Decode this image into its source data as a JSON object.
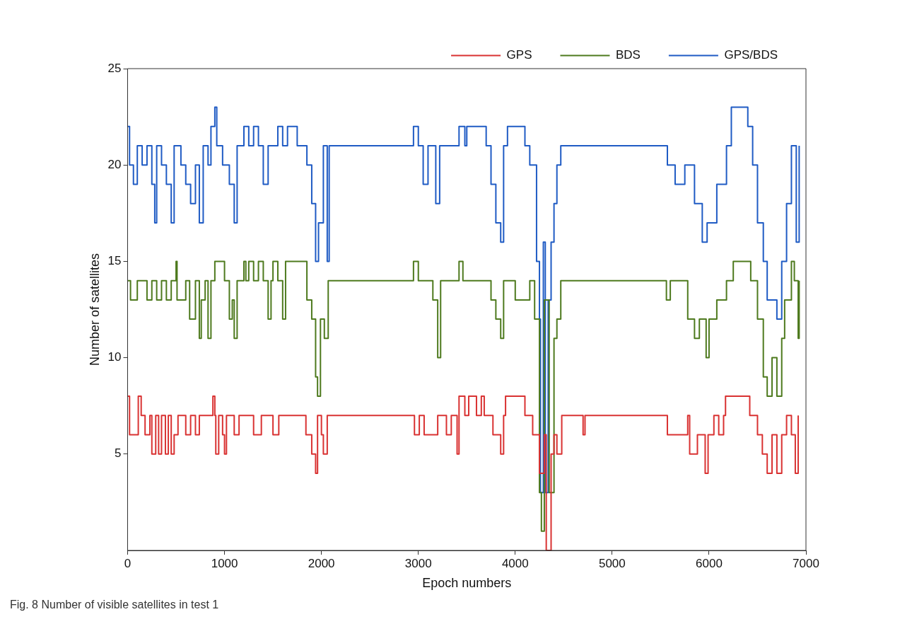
{
  "chart_data": {
    "type": "step",
    "xlabel": "Epoch numbers",
    "ylabel": "Number of satellites",
    "annotations": [
      "Fig. 8  Number of visible satellites in test 1"
    ],
    "xlim": [
      0,
      7000
    ],
    "xticks": [
      0,
      1000,
      2000,
      3000,
      4000,
      5000,
      6000,
      7000
    ],
    "ylim": [
      0,
      25
    ],
    "yticks": [
      5,
      10,
      15,
      20,
      25
    ],
    "grid": false,
    "legend": "top right",
    "series": [
      {
        "name": "GPS",
        "color": "#d93232",
        "x": [
          0,
          20,
          110,
          140,
          180,
          230,
          250,
          290,
          320,
          350,
          390,
          420,
          450,
          480,
          520,
          600,
          650,
          700,
          740,
          880,
          900,
          910,
          940,
          980,
          1000,
          1020,
          1100,
          1150,
          1300,
          1380,
          1500,
          1560,
          1840,
          1900,
          1940,
          1960,
          2000,
          2020,
          2060,
          2960,
          3010,
          3060,
          3200,
          3290,
          3340,
          3400,
          3420,
          3480,
          3520,
          3600,
          3650,
          3680,
          3770,
          3850,
          3880,
          3900,
          4100,
          4180,
          4250,
          4300,
          4320,
          4370,
          4400,
          4430,
          4480,
          4700,
          4720,
          5570,
          5780,
          5800,
          5880,
          5960,
          5990,
          6050,
          6100,
          6150,
          6170,
          6420,
          6500,
          6550,
          6600,
          6650,
          6700,
          6750,
          6800,
          6850,
          6890,
          6920
        ],
        "values": [
          8,
          6,
          8,
          7,
          6,
          7,
          5,
          7,
          5,
          7,
          5,
          7,
          5,
          6,
          7,
          6,
          7,
          6,
          7,
          8,
          7,
          5,
          7,
          6,
          5,
          7,
          6,
          7,
          6,
          7,
          6,
          7,
          6,
          5,
          4,
          7,
          6,
          5,
          7,
          6,
          7,
          6,
          7,
          6,
          7,
          5,
          8,
          7,
          8,
          7,
          8,
          7,
          6,
          5,
          7,
          8,
          7,
          6,
          4,
          6,
          0,
          5,
          6,
          5,
          7,
          6,
          7,
          6,
          7,
          5,
          6,
          4,
          6,
          7,
          6,
          7,
          8,
          7,
          6,
          5,
          4,
          6,
          4,
          6,
          7,
          6,
          4,
          7
        ]
      },
      {
        "name": "BDS",
        "color": "#4e7a1e",
        "x": [
          0,
          30,
          100,
          200,
          250,
          300,
          350,
          400,
          450,
          500,
          510,
          600,
          640,
          700,
          740,
          760,
          800,
          830,
          860,
          900,
          1000,
          1050,
          1080,
          1100,
          1130,
          1200,
          1220,
          1250,
          1300,
          1350,
          1400,
          1450,
          1480,
          1500,
          1550,
          1600,
          1630,
          1850,
          1900,
          1940,
          1960,
          1990,
          2030,
          2070,
          2950,
          3000,
          3150,
          3200,
          3230,
          3420,
          3460,
          3750,
          3800,
          3850,
          3880,
          4000,
          4150,
          4200,
          4250,
          4270,
          4300,
          4350,
          4400,
          4430,
          4470,
          5560,
          5600,
          5780,
          5850,
          5900,
          5970,
          6000,
          6080,
          6180,
          6250,
          6430,
          6500,
          6560,
          6600,
          6650,
          6700,
          6750,
          6780,
          6850,
          6880,
          6920,
          6930
        ],
        "values": [
          14,
          13,
          14,
          13,
          14,
          13,
          14,
          13,
          14,
          15,
          13,
          14,
          12,
          14,
          11,
          13,
          14,
          11,
          14,
          15,
          14,
          12,
          13,
          11,
          14,
          15,
          14,
          15,
          14,
          15,
          14,
          12,
          14,
          15,
          14,
          12,
          15,
          13,
          12,
          9,
          8,
          12,
          11,
          14,
          15,
          14,
          13,
          10,
          14,
          15,
          14,
          13,
          12,
          11,
          14,
          13,
          14,
          12,
          3,
          1,
          13,
          3,
          11,
          12,
          14,
          13,
          14,
          12,
          11,
          12,
          10,
          12,
          13,
          14,
          15,
          14,
          12,
          9,
          8,
          10,
          8,
          11,
          13,
          15,
          14,
          11,
          14
        ]
      },
      {
        "name": "GPS/BDS",
        "color": "#1f5bc4",
        "x": [
          0,
          20,
          60,
          100,
          150,
          200,
          250,
          280,
          300,
          350,
          400,
          450,
          480,
          550,
          600,
          650,
          700,
          740,
          780,
          830,
          860,
          900,
          920,
          980,
          1050,
          1100,
          1130,
          1200,
          1250,
          1300,
          1350,
          1400,
          1450,
          1550,
          1600,
          1650,
          1750,
          1850,
          1900,
          1940,
          1970,
          2020,
          2060,
          2080,
          2950,
          3000,
          3050,
          3100,
          3180,
          3220,
          3420,
          3480,
          3500,
          3700,
          3750,
          3800,
          3850,
          3880,
          3920,
          4100,
          4150,
          4220,
          4250,
          4260,
          4290,
          4310,
          4340,
          4370,
          4400,
          4430,
          4470,
          5570,
          5650,
          5750,
          5850,
          5930,
          5980,
          6080,
          6180,
          6230,
          6400,
          6450,
          6500,
          6560,
          6600,
          6700,
          6750,
          6800,
          6850,
          6900,
          6930
        ],
        "values": [
          22,
          20,
          19,
          21,
          20,
          21,
          19,
          17,
          21,
          20,
          19,
          17,
          21,
          20,
          19,
          18,
          20,
          17,
          21,
          20,
          22,
          23,
          21,
          20,
          19,
          17,
          21,
          22,
          21,
          22,
          21,
          19,
          21,
          22,
          21,
          22,
          21,
          20,
          18,
          15,
          17,
          21,
          15,
          21,
          22,
          21,
          19,
          21,
          18,
          21,
          22,
          21,
          22,
          21,
          19,
          17,
          16,
          21,
          22,
          21,
          20,
          15,
          12,
          3,
          16,
          3,
          13,
          16,
          18,
          20,
          21,
          20,
          19,
          20,
          18,
          16,
          17,
          19,
          21,
          23,
          22,
          20,
          17,
          15,
          13,
          12,
          15,
          18,
          21,
          16,
          21
        ]
      }
    ]
  }
}
